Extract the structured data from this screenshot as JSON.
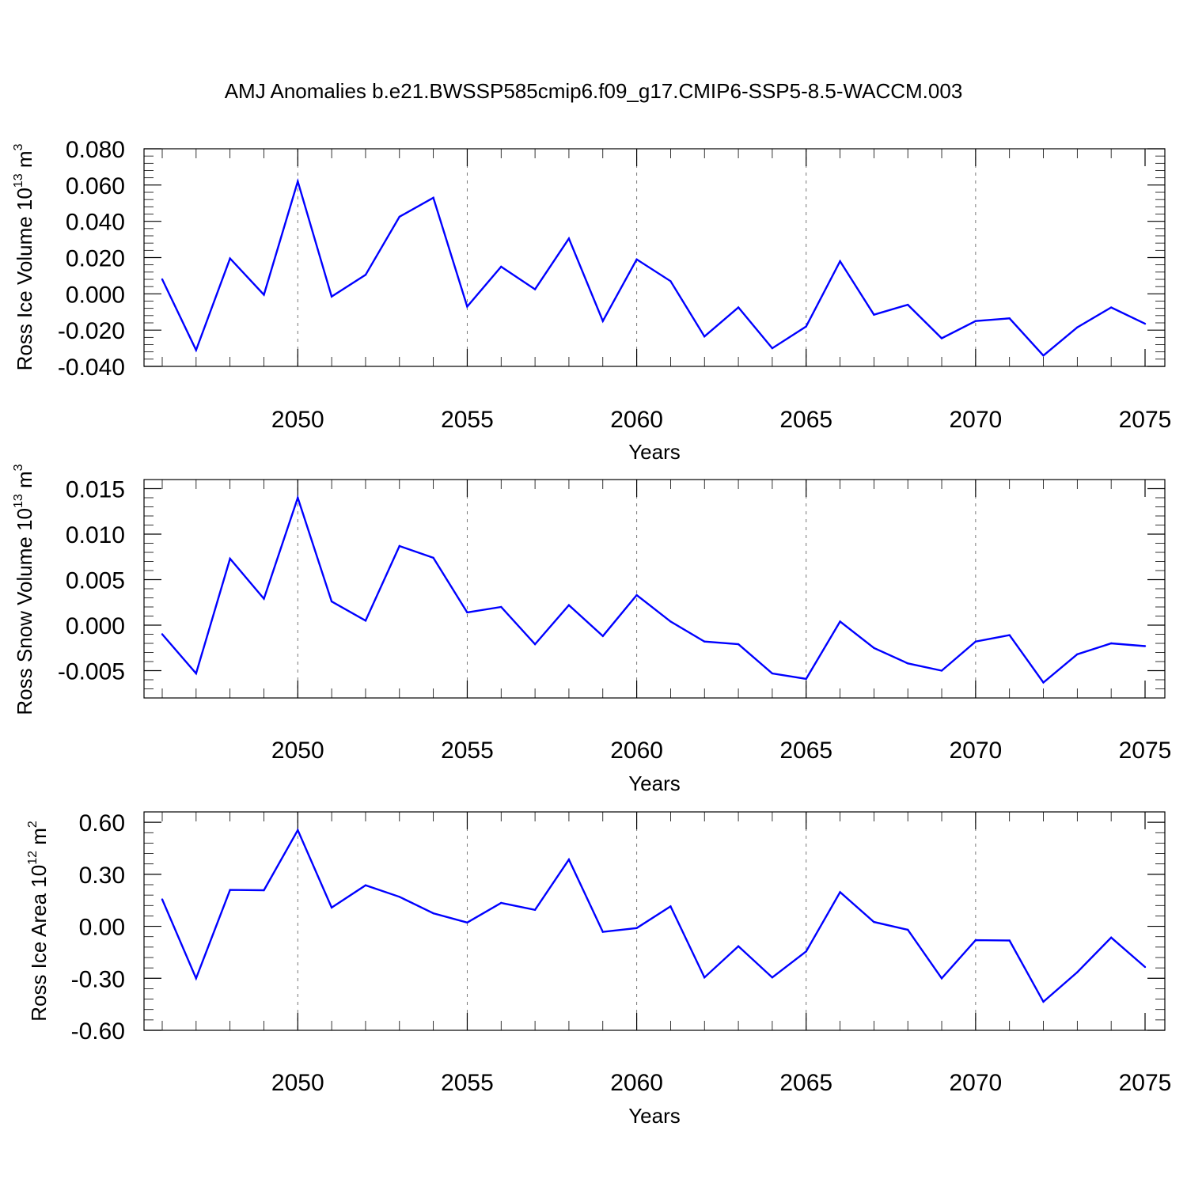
{
  "title": "AMJ Anomalies b.e21.BWSSP585cmip6.f09_g17.CMIP6-SSP5-8.5-WACCM.003",
  "series_color": "#0000ff",
  "chart_data": [
    {
      "type": "line",
      "id": "ice-volume",
      "ylabel": "Ross Ice Volume 10",
      "ylabel_exp": "13",
      "ylabel_unit": " m",
      "ylabel_unit_exp": "3",
      "xlabel": "Years",
      "xlim": [
        2046,
        2075
      ],
      "ylim": [
        -0.04,
        0.08
      ],
      "yticks": [
        -0.04,
        -0.02,
        0.0,
        0.02,
        0.04,
        0.06,
        0.08
      ],
      "ytick_labels": [
        "-0.040",
        "-0.020",
        "0.000",
        "0.020",
        "0.040",
        "0.060",
        "0.080"
      ],
      "yminor_step": 0.004,
      "xticks": [
        2050,
        2055,
        2060,
        2065,
        2070,
        2075
      ],
      "xtick_labels": [
        "2050",
        "2055",
        "2060",
        "2065",
        "2070",
        "2075"
      ],
      "grid": "dashed vertical lines at major x ticks",
      "x": [
        2046,
        2047,
        2048,
        2049,
        2050,
        2051,
        2052,
        2053,
        2054,
        2055,
        2056,
        2057,
        2058,
        2059,
        2060,
        2061,
        2062,
        2063,
        2064,
        2065,
        2066,
        2067,
        2068,
        2069,
        2070,
        2071,
        2072,
        2073,
        2074,
        2075
      ],
      "y": [
        0.008,
        -0.031,
        0.0195,
        -0.0005,
        0.062,
        -0.0015,
        0.0105,
        0.0425,
        0.053,
        -0.007,
        0.015,
        0.0025,
        0.0305,
        -0.015,
        0.019,
        0.007,
        -0.0235,
        -0.0075,
        -0.03,
        -0.018,
        0.018,
        -0.0115,
        -0.006,
        -0.0245,
        -0.015,
        -0.0135,
        -0.034,
        -0.0185,
        -0.0075,
        -0.0165
      ]
    },
    {
      "type": "line",
      "id": "snow-volume",
      "ylabel": "Ross Snow Volume 10",
      "ylabel_exp": "13",
      "ylabel_unit": " m",
      "ylabel_unit_exp": "3",
      "xlabel": "Years",
      "xlim": [
        2046,
        2075
      ],
      "ylim": [
        -0.008,
        0.016
      ],
      "yticks": [
        -0.005,
        0.0,
        0.005,
        0.01,
        0.015
      ],
      "ytick_labels": [
        "-0.005",
        "0.000",
        "0.005",
        "0.010",
        "0.015"
      ],
      "yminor_step": 0.001,
      "xticks": [
        2050,
        2055,
        2060,
        2065,
        2070,
        2075
      ],
      "xtick_labels": [
        "2050",
        "2055",
        "2060",
        "2065",
        "2070",
        "2075"
      ],
      "grid": "dashed vertical lines at major x ticks",
      "x": [
        2046,
        2047,
        2048,
        2049,
        2050,
        2051,
        2052,
        2053,
        2054,
        2055,
        2056,
        2057,
        2058,
        2059,
        2060,
        2061,
        2062,
        2063,
        2064,
        2065,
        2066,
        2067,
        2068,
        2069,
        2070,
        2071,
        2072,
        2073,
        2074,
        2075
      ],
      "y": [
        -0.001,
        -0.0053,
        0.0073,
        0.0029,
        0.014,
        0.0026,
        0.0005,
        0.0087,
        0.0074,
        0.0014,
        0.002,
        -0.0021,
        0.0022,
        -0.0012,
        0.0033,
        0.0004,
        -0.0018,
        -0.0021,
        -0.0053,
        -0.0059,
        0.0004,
        -0.0025,
        -0.0042,
        -0.005,
        -0.0018,
        -0.0011,
        -0.0063,
        -0.0032,
        -0.002,
        -0.0023
      ]
    },
    {
      "type": "line",
      "id": "ice-area",
      "ylabel": "Ross Ice Area 10",
      "ylabel_exp": "12",
      "ylabel_unit": " m",
      "ylabel_unit_exp": "2",
      "xlabel": "Years",
      "xlim": [
        2046,
        2075
      ],
      "ylim": [
        -0.6,
        0.66
      ],
      "yticks": [
        -0.6,
        -0.3,
        0.0,
        0.3,
        0.6
      ],
      "ytick_labels": [
        "-0.60",
        "-0.30",
        "0.00",
        "0.30",
        "0.60"
      ],
      "yminor_step": 0.06,
      "xticks": [
        2050,
        2055,
        2060,
        2065,
        2070,
        2075
      ],
      "xtick_labels": [
        "2050",
        "2055",
        "2060",
        "2065",
        "2070",
        "2075"
      ],
      "grid": "dashed vertical lines at major x ticks",
      "x": [
        2046,
        2047,
        2048,
        2049,
        2050,
        2051,
        2052,
        2053,
        2054,
        2055,
        2056,
        2057,
        2058,
        2059,
        2060,
        2061,
        2062,
        2063,
        2064,
        2065,
        2066,
        2067,
        2068,
        2069,
        2070,
        2071,
        2072,
        2073,
        2074,
        2075
      ],
      "y": [
        0.155,
        -0.3,
        0.21,
        0.208,
        0.555,
        0.108,
        0.237,
        0.17,
        0.075,
        0.022,
        0.135,
        0.095,
        0.385,
        -0.032,
        -0.01,
        0.115,
        -0.295,
        -0.115,
        -0.295,
        -0.145,
        0.197,
        0.025,
        -0.02,
        -0.3,
        -0.08,
        -0.082,
        -0.435,
        -0.265,
        -0.065,
        -0.235
      ]
    }
  ]
}
